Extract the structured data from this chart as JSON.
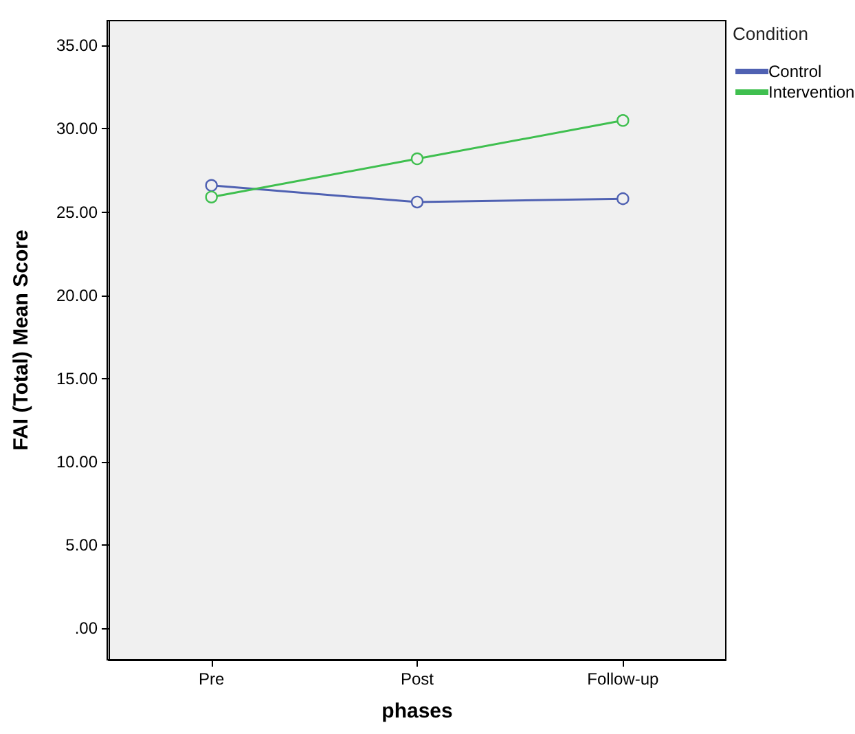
{
  "chart_data": {
    "type": "line",
    "xlabel": "phases",
    "ylabel": "FAI (Total) Mean Score",
    "legend_title": "Condition",
    "categories": [
      "Pre",
      "Post",
      "Follow-up"
    ],
    "series": [
      {
        "name": "Control",
        "color": "#4f61b2",
        "values": [
          26.6,
          25.6,
          25.8
        ]
      },
      {
        "name": "Intervention",
        "color": "#3fbf4f",
        "values": [
          25.9,
          28.2,
          30.5
        ]
      }
    ],
    "ylim": [
      -1.9,
      36.5
    ],
    "yticks": [
      {
        "value": 0,
        "label": ".00"
      },
      {
        "value": 5,
        "label": "5.00"
      },
      {
        "value": 10,
        "label": "10.00"
      },
      {
        "value": 15,
        "label": "15.00"
      },
      {
        "value": 20,
        "label": "20.00"
      },
      {
        "value": 25,
        "label": "25.00"
      },
      {
        "value": 30,
        "label": "30.00"
      },
      {
        "value": 35,
        "label": "35.00"
      }
    ],
    "marker": "circle",
    "line_style": "solid",
    "grid": false,
    "legend": "top right"
  }
}
